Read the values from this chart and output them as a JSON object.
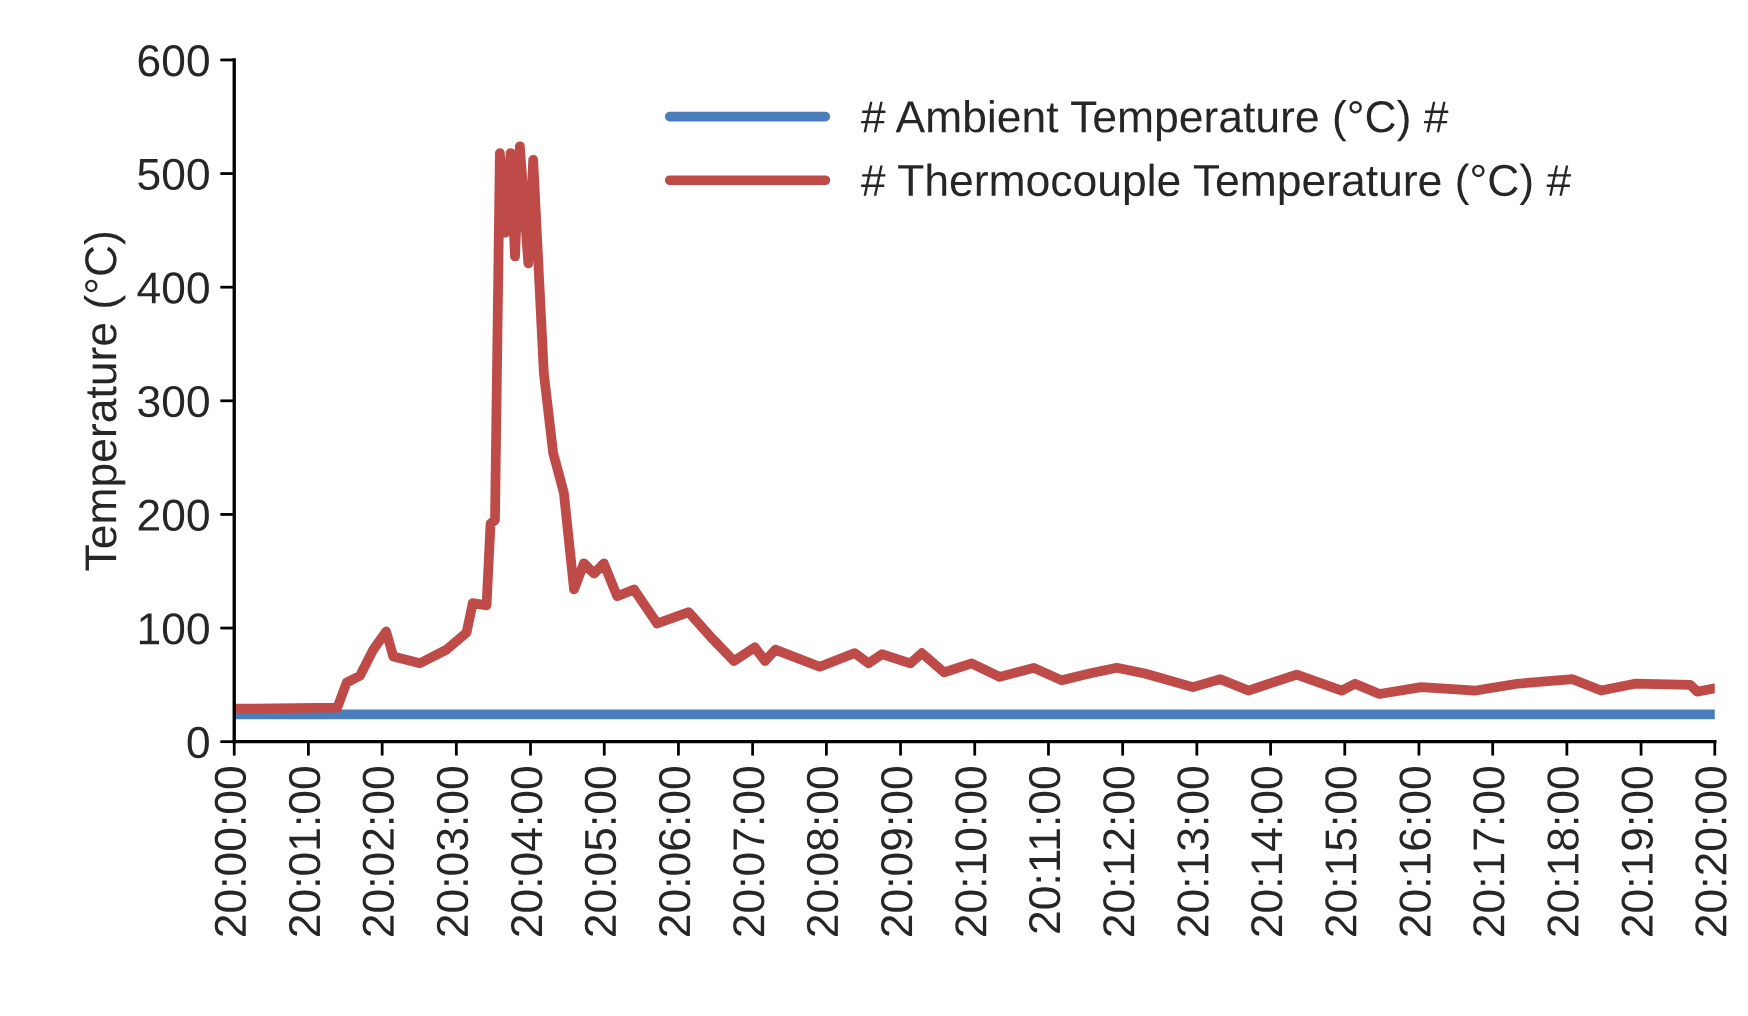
{
  "chart_data": {
    "type": "line",
    "ylabel": "Temperature (°C)",
    "ylim": [
      0,
      600
    ],
    "yticks": [
      0,
      100,
      200,
      300,
      400,
      500,
      600
    ],
    "xlim": [
      20.0,
      20.3333
    ],
    "xticks": [
      {
        "value": 20.0,
        "label": "20:00:00"
      },
      {
        "value": 20.0167,
        "label": "20:01:00"
      },
      {
        "value": 20.0333,
        "label": "20:02:00"
      },
      {
        "value": 20.05,
        "label": "20:03:00"
      },
      {
        "value": 20.0667,
        "label": "20:04:00"
      },
      {
        "value": 20.0833,
        "label": "20:05:00"
      },
      {
        "value": 20.1,
        "label": "20:06:00"
      },
      {
        "value": 20.1167,
        "label": "20:07:00"
      },
      {
        "value": 20.1333,
        "label": "20:08:00"
      },
      {
        "value": 20.15,
        "label": "20:09:00"
      },
      {
        "value": 20.1667,
        "label": "20:10:00"
      },
      {
        "value": 20.1833,
        "label": "20:11:00"
      },
      {
        "value": 20.2,
        "label": "20:12:00"
      },
      {
        "value": 20.2167,
        "label": "20:13:00"
      },
      {
        "value": 20.2333,
        "label": "20:14:00"
      },
      {
        "value": 20.25,
        "label": "20:15:00"
      },
      {
        "value": 20.2667,
        "label": "20:16:00"
      },
      {
        "value": 20.2833,
        "label": "20:17:00"
      },
      {
        "value": 20.3,
        "label": "20:18:00"
      },
      {
        "value": 20.3167,
        "label": "20:19:00"
      },
      {
        "value": 20.3333,
        "label": "20:20:00"
      }
    ],
    "legend": "top right",
    "grid": false,
    "marker": "none",
    "line_style": "solid",
    "series": [
      {
        "name": "# Ambient Temperature (°C) #",
        "color": "#4a7ebb",
        "x": [
          20.0,
          20.0833,
          20.1667,
          20.25,
          20.3333
        ],
        "values": [
          24,
          24,
          24,
          24,
          24
        ]
      },
      {
        "name": "# Thermocouple Temperature (°C) #",
        "color": "#be4b48",
        "x": [
          20.0,
          20.0232,
          20.0253,
          20.0283,
          20.0313,
          20.0342,
          20.0358,
          20.0418,
          20.0478,
          20.0523,
          20.0537,
          20.0568,
          20.0577,
          20.0587,
          20.0598,
          20.061,
          20.0622,
          20.0632,
          20.0643,
          20.0662,
          20.0673,
          20.0697,
          20.0718,
          20.0742,
          20.0765,
          20.0787,
          20.081,
          20.0832,
          20.0862,
          20.09,
          20.0952,
          20.1023,
          20.1078,
          20.1125,
          20.1172,
          20.1195,
          20.1218,
          20.1318,
          20.1397,
          20.1428,
          20.1458,
          20.1522,
          20.1548,
          20.1598,
          20.166,
          20.1723,
          20.18,
          20.1863,
          20.1925,
          20.1987,
          20.205,
          20.2158,
          20.222,
          20.2283,
          20.233,
          20.2392,
          20.2493,
          20.2523,
          20.2578,
          20.2672,
          20.2795,
          20.2888,
          20.3013,
          20.3077,
          20.3153,
          20.3278,
          20.3293,
          20.3333
        ],
        "values": [
          29,
          30,
          52,
          58,
          81,
          97,
          75,
          69,
          81,
          96,
          122,
          120,
          192,
          195,
          518,
          448,
          518,
          427,
          524,
          421,
          512,
          324,
          254,
          219,
          134,
          157,
          148,
          157,
          128,
          134,
          104,
          114,
          90,
          71,
          83,
          71,
          81,
          66,
          78,
          69,
          77,
          69,
          78,
          61,
          69,
          57,
          65,
          54,
          60,
          65,
          60,
          48,
          55,
          45,
          51,
          59,
          45,
          51,
          42,
          48,
          45,
          51,
          55,
          45,
          51,
          50,
          44,
          47
        ]
      }
    ]
  }
}
